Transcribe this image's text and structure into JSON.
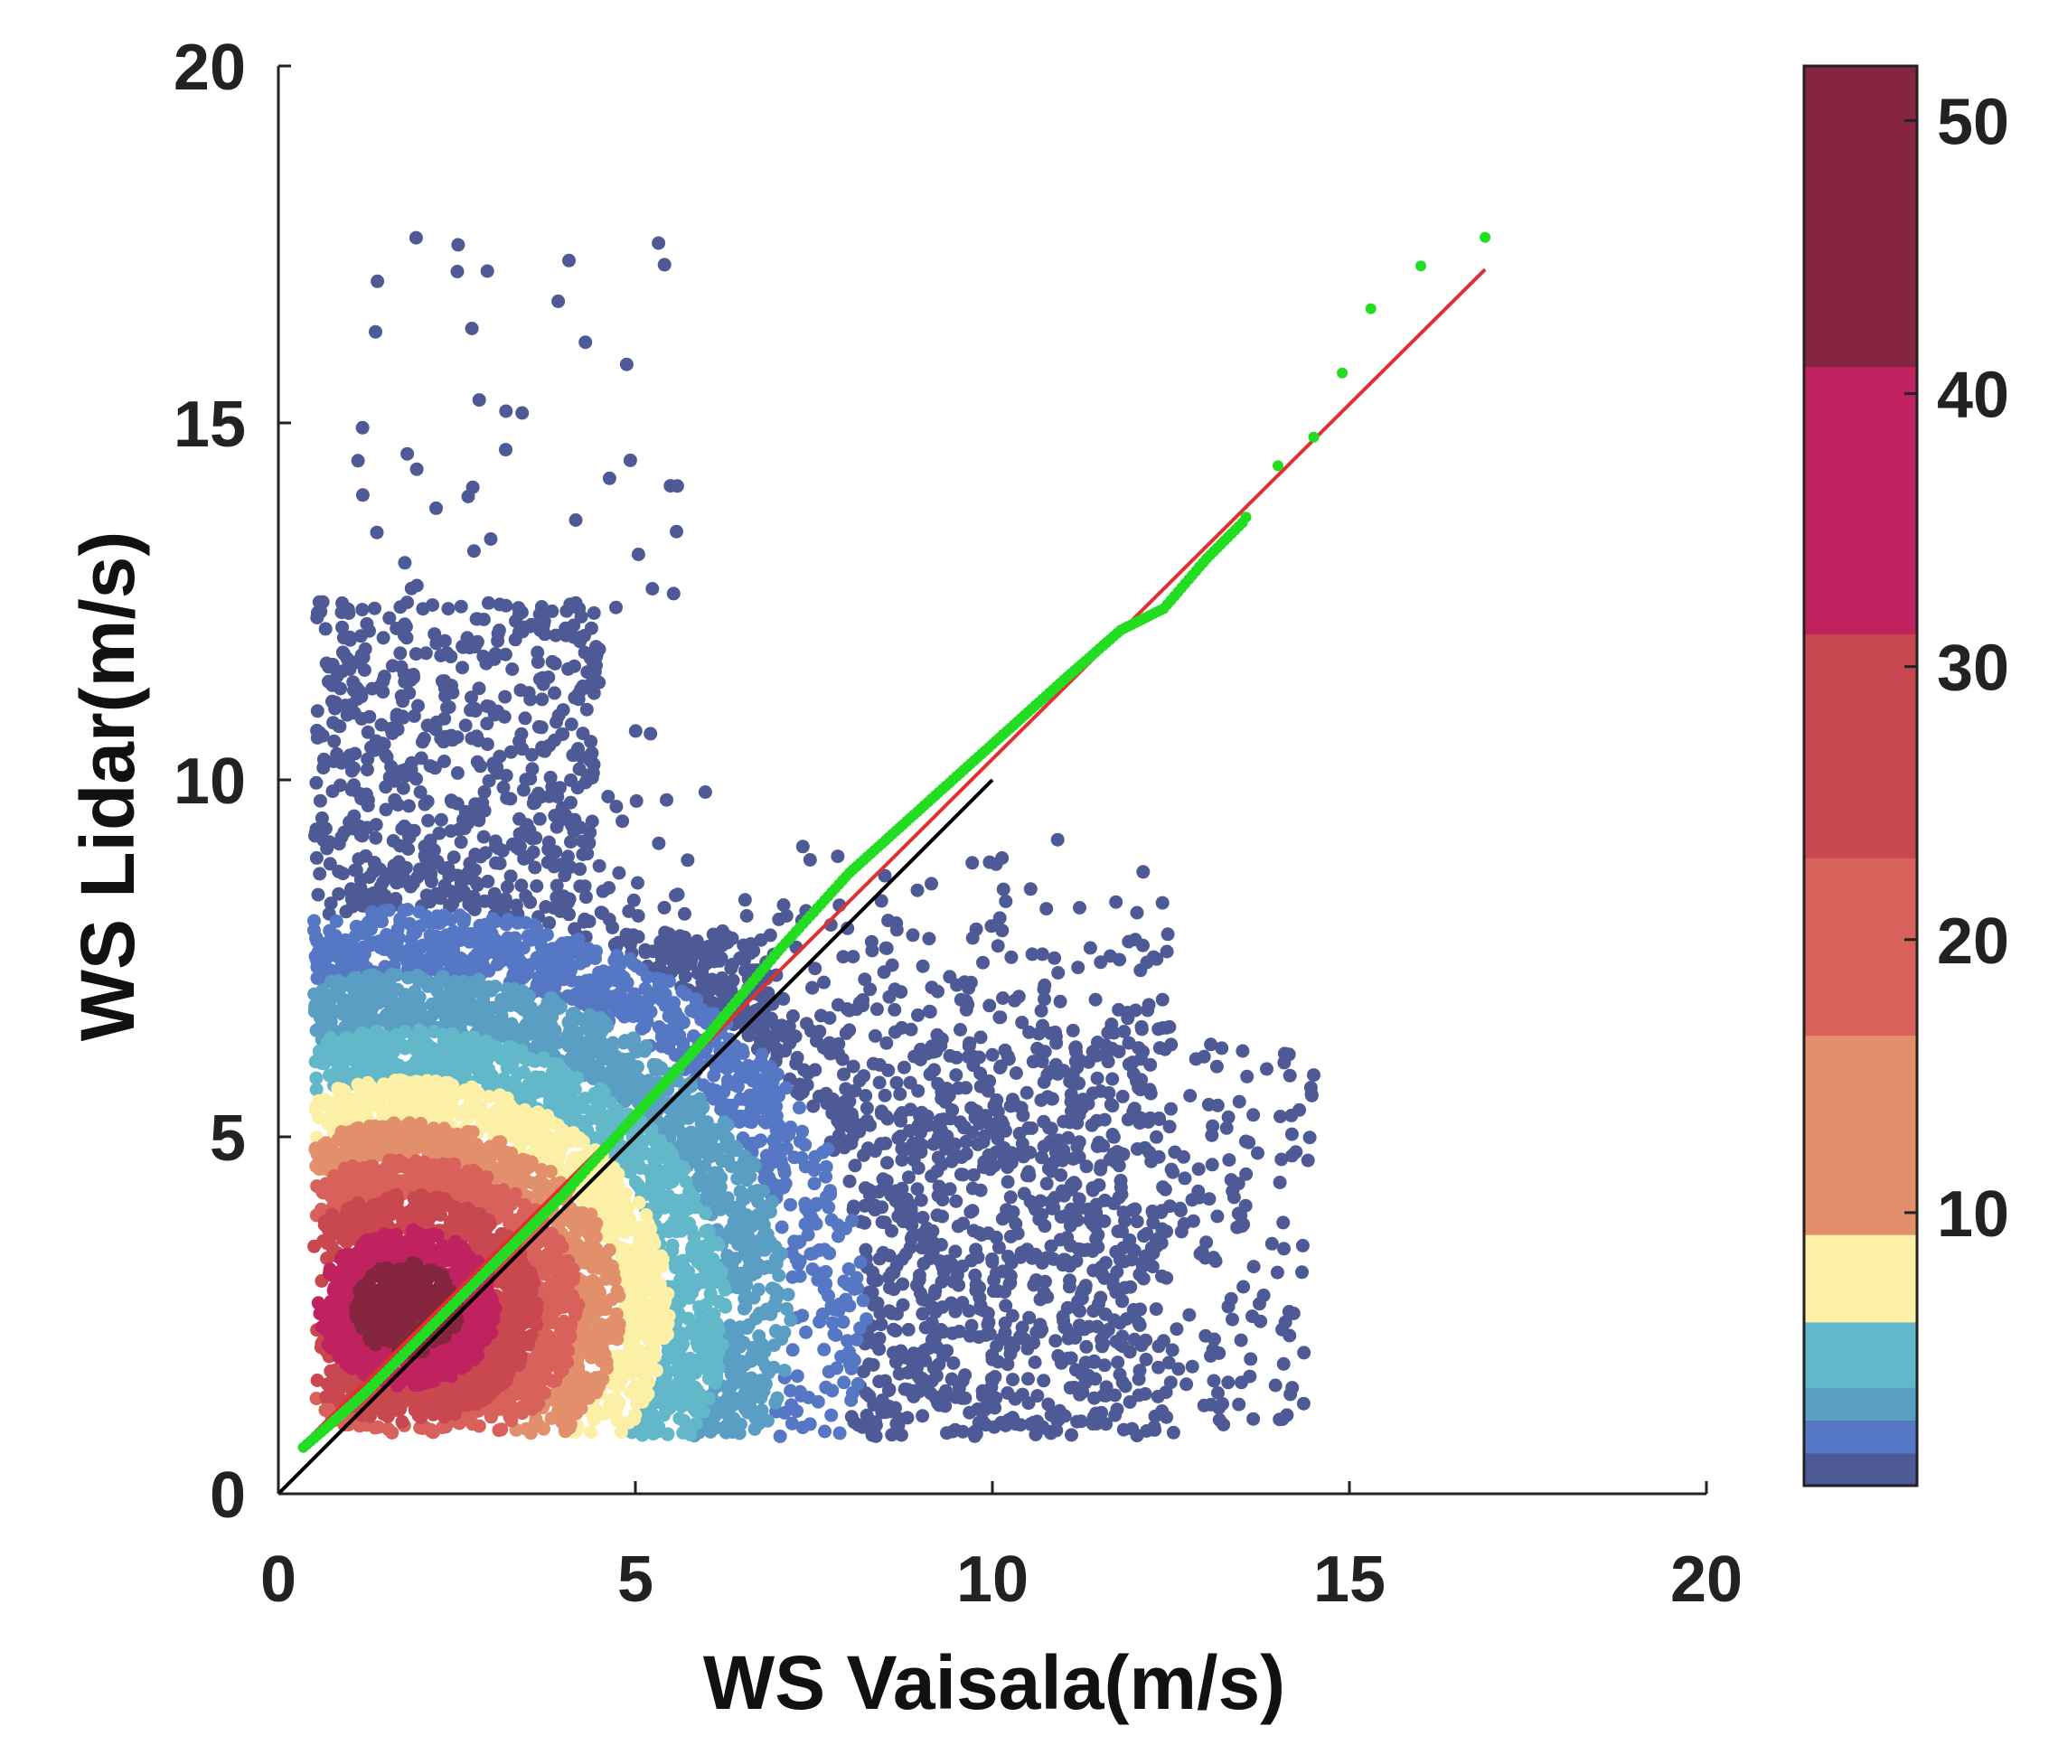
{
  "chart_data": {
    "type": "scatter",
    "title": "",
    "xlabel": "WS Vaisala(m/s)",
    "ylabel": "WS Lidar(m/s)",
    "xlim": [
      0,
      20
    ],
    "ylim": [
      0,
      20
    ],
    "xticks": [
      0,
      5,
      10,
      15,
      20
    ],
    "yticks": [
      0,
      5,
      10,
      15,
      20
    ],
    "grid": false,
    "scatter": {
      "description": "density-colored scatter of WS Lidar vs WS Vaisala",
      "x_range": [
        0.3,
        14.7
      ],
      "y_range": [
        0.6,
        17.6
      ],
      "density_center": [
        1.8,
        2.5
      ],
      "colormap_colors": [
        "#4e5a95",
        "#5577c4",
        "#5a9ec3",
        "#62b7c9",
        "#fbf0a6",
        "#e2906b",
        "#d9615b",
        "#c9474f",
        "#c02260",
        "#85253f"
      ]
    },
    "series": [
      {
        "name": "quantile-quantile points",
        "type": "scatter",
        "color": "#22dd22",
        "x": [
          0.35,
          0.7,
          1.2,
          2.0,
          3.0,
          4.0,
          5.0,
          6.0,
          7.0,
          8.0,
          9.0,
          10.0,
          11.0,
          11.8,
          12.4,
          13.0,
          13.5,
          14.0,
          14.5,
          14.9,
          15.3,
          16.0,
          16.9
        ],
        "y": [
          0.65,
          0.95,
          1.4,
          2.2,
          3.2,
          4.2,
          5.3,
          6.4,
          7.6,
          8.7,
          9.6,
          10.5,
          11.4,
          12.1,
          12.4,
          13.1,
          13.6,
          14.4,
          14.8,
          15.7,
          16.6,
          17.2,
          17.6
        ]
      },
      {
        "name": "linear fit",
        "type": "line",
        "color": "#e03030",
        "x": [
          0.3,
          16.9
        ],
        "y": [
          0.65,
          17.15
        ]
      },
      {
        "name": "1:1 line",
        "type": "line",
        "color": "#000000",
        "x": [
          0,
          10
        ],
        "y": [
          0,
          10
        ]
      }
    ],
    "colorbar": {
      "ticks": [
        10,
        20,
        30,
        40,
        50
      ],
      "tick_labels": [
        "10",
        "20",
        "30",
        "40",
        "50"
      ],
      "range": [
        0,
        52
      ],
      "bands": [
        {
          "from": 0,
          "to": 1.2,
          "color": "#4e5a95"
        },
        {
          "from": 1.2,
          "to": 2.4,
          "color": "#5577c4"
        },
        {
          "from": 2.4,
          "to": 3.6,
          "color": "#5a9ec3"
        },
        {
          "from": 3.6,
          "to": 6.0,
          "color": "#62b7c9"
        },
        {
          "from": 6.0,
          "to": 9.2,
          "color": "#fbf0a6"
        },
        {
          "from": 9.2,
          "to": 16.5,
          "color": "#e2906b"
        },
        {
          "from": 16.5,
          "to": 23.0,
          "color": "#d9615b"
        },
        {
          "from": 23.0,
          "to": 31.2,
          "color": "#c9474f"
        },
        {
          "from": 31.2,
          "to": 41.0,
          "color": "#c02260"
        },
        {
          "from": 41.0,
          "to": 52.0,
          "color": "#85253f"
        }
      ]
    }
  }
}
